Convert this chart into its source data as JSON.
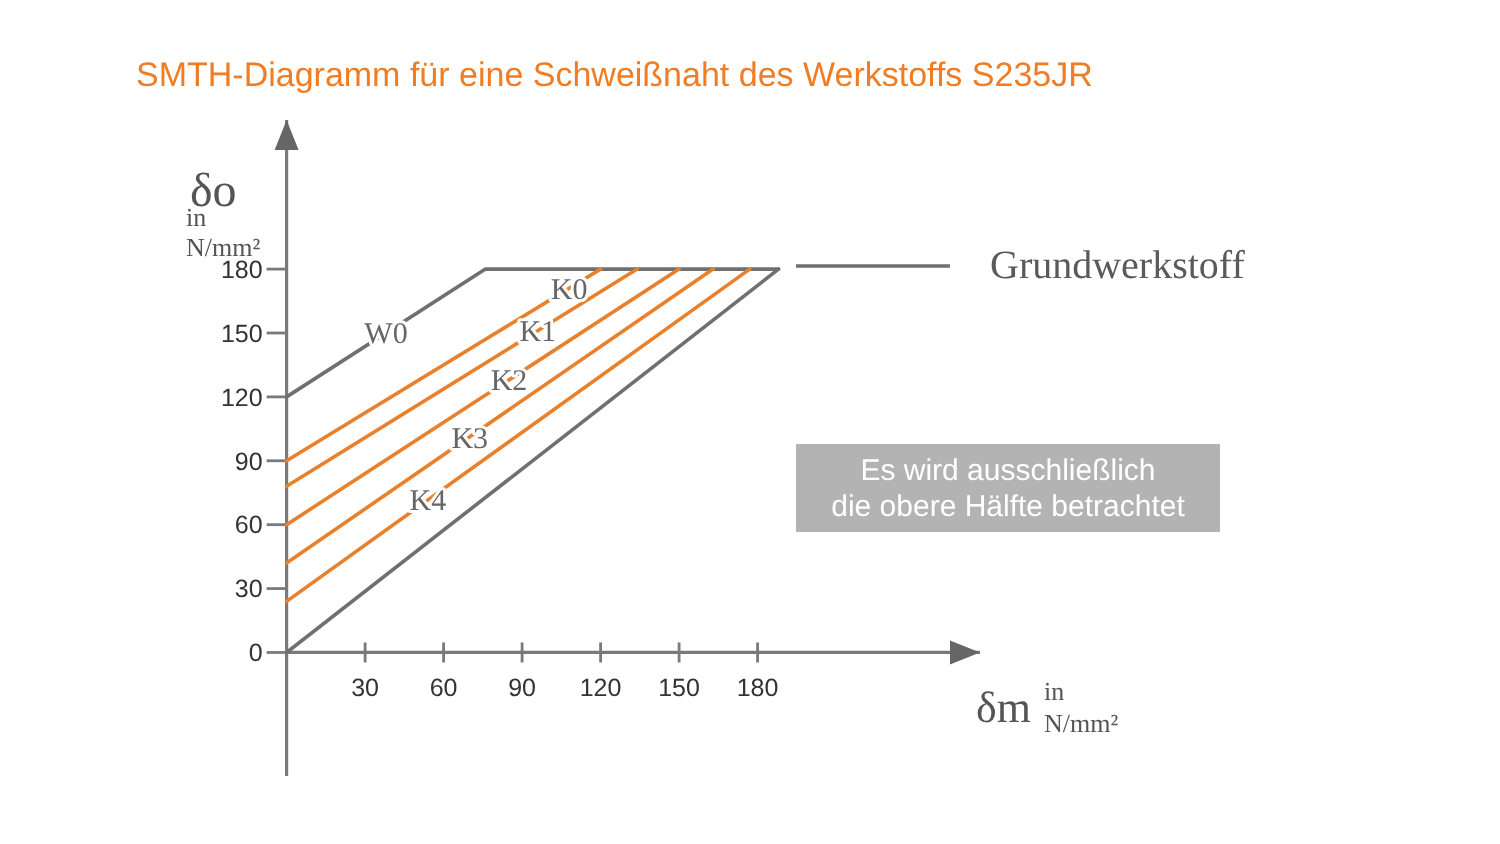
{
  "chart_data": {
    "type": "line",
    "title": "SMTH-Diagramm für eine Schweißnaht des Werkstoffs S235JR",
    "xlabel": "δm\nin\nN/mm²",
    "ylabel": "δo\nin\nN/mm²",
    "xlim": [
      0,
      265
    ],
    "ylim": [
      -58,
      250
    ],
    "xticks": [
      30,
      60,
      90,
      120,
      150,
      180
    ],
    "yticks": [
      0,
      30,
      60,
      90,
      120,
      150,
      180
    ],
    "legend": "top right",
    "series": [
      {
        "name": "Grundwerkstoff",
        "color": "#707070",
        "x": [
          0,
          76,
          188
        ],
        "values": [
          120,
          180,
          180
        ]
      },
      {
        "color": "#707070",
        "x": [
          0,
          188
        ],
        "values": [
          0,
          180
        ]
      },
      {
        "color": "#e8802c",
        "x": [
          0,
          120
        ],
        "values": [
          90,
          180
        ]
      },
      {
        "color": "#e8802c",
        "x": [
          0,
          134
        ],
        "values": [
          78,
          180
        ]
      },
      {
        "color": "#e8802c",
        "x": [
          0,
          150
        ],
        "values": [
          60,
          180
        ]
      },
      {
        "color": "#e8802c",
        "x": [
          0,
          163
        ],
        "values": [
          42,
          180
        ]
      },
      {
        "color": "#e8802c",
        "x": [
          0,
          177
        ],
        "values": [
          24,
          180
        ]
      }
    ],
    "annotations": [
      {
        "text": "W0",
        "x": 38,
        "y": 150
      },
      {
        "text": "K0",
        "x": 108,
        "y": 171
      },
      {
        "text": "K1",
        "x": 96,
        "y": 151
      },
      {
        "text": "K2",
        "x": 85,
        "y": 128
      },
      {
        "text": "K3",
        "x": 70,
        "y": 101
      },
      {
        "text": "K4",
        "x": 54,
        "y": 72
      },
      "Es wird ausschließlich\ndie obere Hälfte betrachtet"
    ]
  }
}
